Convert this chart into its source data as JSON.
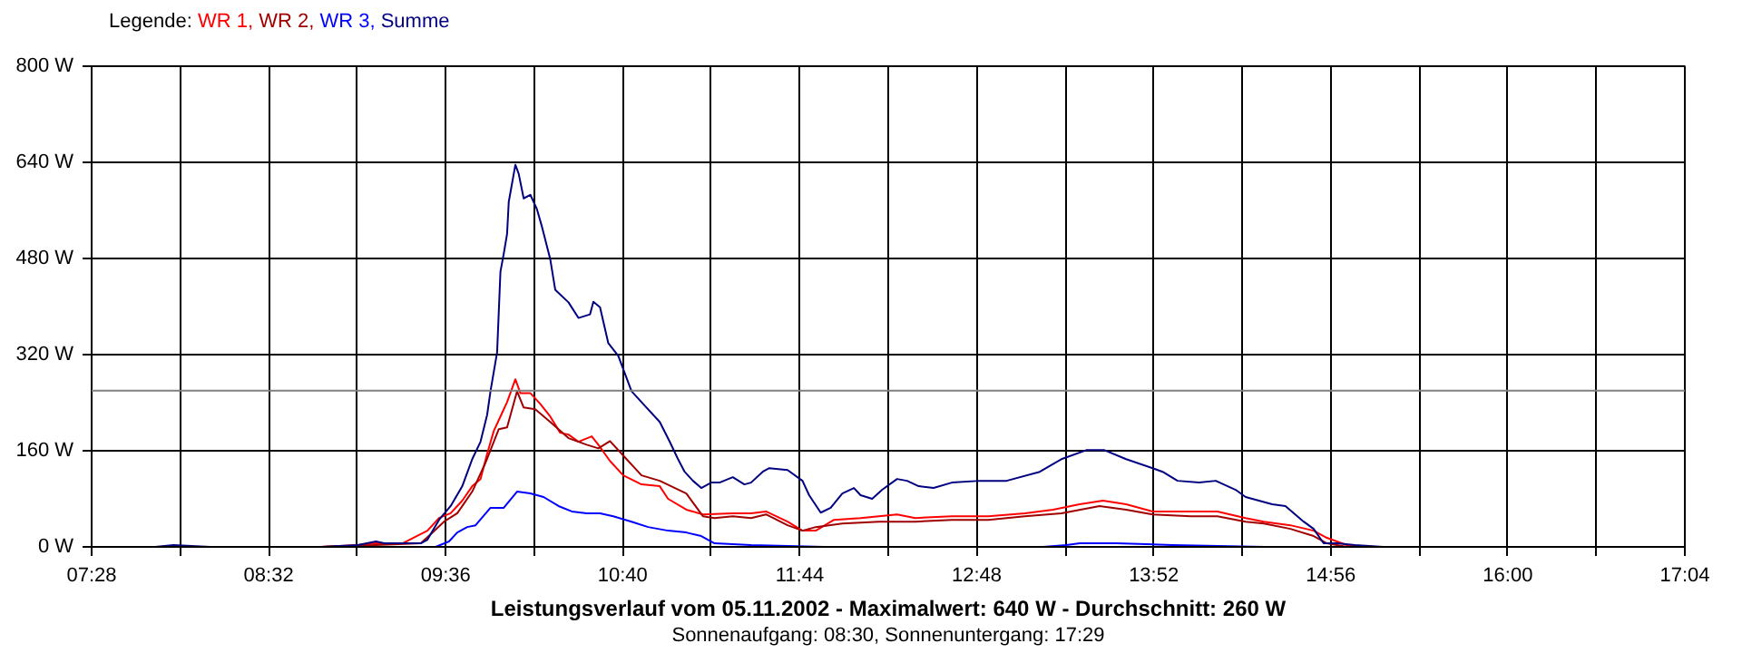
{
  "chart_data": {
    "type": "line",
    "title": "Leistungsverlauf vom 05.11.2002 - Maximalwert: 640 W - Durchschnitt: 260 W",
    "subtitle": "Sonnenaufgang: 08:30, Sonnenuntergang: 17:29",
    "legend_title": "Legende:",
    "legend": "top left",
    "grid": true,
    "line_style": "solid",
    "xlim": [
      7.4667,
      17.0667
    ],
    "xticks": [
      {
        "value": 7.4667,
        "label": "07:28"
      },
      {
        "value": 8.0,
        "label": null
      },
      {
        "value": 8.5333,
        "label": "08:32"
      },
      {
        "value": 9.0667,
        "label": null
      },
      {
        "value": 9.6,
        "label": "09:36"
      },
      {
        "value": 10.1333,
        "label": null
      },
      {
        "value": 10.6667,
        "label": "10:40"
      },
      {
        "value": 11.2,
        "label": null
      },
      {
        "value": 11.7333,
        "label": "11:44"
      },
      {
        "value": 12.2667,
        "label": null
      },
      {
        "value": 12.8,
        "label": "12:48"
      },
      {
        "value": 13.3333,
        "label": null
      },
      {
        "value": 13.8667,
        "label": "13:52"
      },
      {
        "value": 14.4,
        "label": null
      },
      {
        "value": 14.9333,
        "label": "14:56"
      },
      {
        "value": 15.4667,
        "label": null
      },
      {
        "value": 16.0,
        "label": "16:00"
      },
      {
        "value": 16.5333,
        "label": null
      },
      {
        "value": 17.0667,
        "label": "17:04"
      }
    ],
    "ylim": [
      0,
      800
    ],
    "yticks": [
      {
        "value": 0,
        "label": "0 W"
      },
      {
        "value": 160,
        "label": "160 W"
      },
      {
        "value": 320,
        "label": "320 W"
      },
      {
        "value": 480,
        "label": "480 W"
      },
      {
        "value": 640,
        "label": "640 W"
      },
      {
        "value": 800,
        "label": "800 W"
      }
    ],
    "ref_lines": [
      {
        "axis": "y",
        "value": 260,
        "color": "#808080"
      }
    ],
    "series": [
      {
        "name": "WR 1,",
        "color": "#ff0000",
        "x": [
          8.85,
          9.07,
          9.18,
          9.34,
          9.49,
          9.56,
          9.63,
          9.7,
          9.76,
          9.81,
          9.85,
          9.89,
          9.93,
          9.97,
          10.02,
          10.05,
          10.11,
          10.17,
          10.23,
          10.29,
          10.34,
          10.4,
          10.48,
          10.52,
          10.59,
          10.67,
          10.78,
          10.89,
          10.94,
          11.05,
          11.15,
          11.33,
          11.44,
          11.53,
          11.66,
          11.75,
          11.83,
          11.94,
          12.1,
          12.32,
          12.43,
          12.65,
          12.87,
          13.09,
          13.26,
          13.42,
          13.56,
          13.7,
          13.86,
          14.09,
          14.25,
          14.42,
          14.53,
          14.69,
          14.83,
          14.91,
          15.03,
          15.19
        ],
        "values": [
          0,
          3,
          6,
          6,
          27,
          48,
          56,
          77,
          101,
          113,
          155,
          193,
          217,
          241,
          279,
          256,
          256,
          238,
          217,
          190,
          187,
          175,
          184,
          170,
          143,
          119,
          104,
          101,
          80,
          62,
          54,
          56,
          56,
          59,
          42,
          27,
          27,
          45,
          48,
          54,
          48,
          51,
          51,
          56,
          62,
          71,
          77,
          71,
          59,
          59,
          59,
          48,
          42,
          36,
          27,
          15,
          3,
          0
        ]
      },
      {
        "name": "WR 2,",
        "color": "#a00000",
        "x": [
          8.85,
          9.18,
          9.45,
          9.51,
          9.59,
          9.67,
          9.76,
          9.84,
          9.92,
          9.97,
          10.03,
          10.07,
          10.14,
          10.23,
          10.34,
          10.45,
          10.52,
          10.59,
          10.67,
          10.78,
          10.89,
          11.05,
          11.15,
          11.22,
          11.33,
          11.44,
          11.53,
          11.66,
          11.75,
          11.83,
          11.99,
          12.21,
          12.43,
          12.65,
          12.87,
          13.09,
          13.31,
          13.54,
          13.7,
          13.86,
          14.09,
          14.25,
          14.42,
          14.53,
          14.69,
          14.83,
          14.91,
          15.03,
          15.19
        ],
        "values": [
          0,
          3,
          6,
          21,
          42,
          56,
          92,
          140,
          196,
          199,
          259,
          232,
          229,
          208,
          181,
          170,
          164,
          176,
          152,
          119,
          110,
          89,
          51,
          48,
          51,
          48,
          54,
          36,
          27,
          33,
          39,
          42,
          42,
          45,
          45,
          51,
          56,
          68,
          62,
          54,
          51,
          51,
          42,
          39,
          30,
          18,
          6,
          0,
          0
        ]
      },
      {
        "name": "WR 3,",
        "color": "#0000ff",
        "x": [
          9.54,
          9.62,
          9.67,
          9.73,
          9.78,
          9.87,
          9.95,
          10.03,
          10.11,
          10.19,
          10.28,
          10.36,
          10.45,
          10.53,
          10.61,
          10.72,
          10.82,
          10.94,
          11.05,
          11.14,
          11.22,
          11.44,
          11.88,
          13.2,
          13.34,
          13.42,
          13.64,
          13.98,
          14.53
        ],
        "values": [
          0,
          9,
          24,
          33,
          36,
          65,
          65,
          92,
          89,
          83,
          68,
          59,
          56,
          56,
          51,
          42,
          33,
          27,
          24,
          18,
          6,
          3,
          0,
          0,
          3,
          6,
          6,
          3,
          0
        ]
      },
      {
        "name": "Summe",
        "color": "#000080",
        "x": [
          7.85,
          7.96,
          8.18,
          8.35,
          8.85,
          9.07,
          9.18,
          9.23,
          9.45,
          9.49,
          9.56,
          9.63,
          9.7,
          9.76,
          9.81,
          9.85,
          9.87,
          9.91,
          9.93,
          9.95,
          9.97,
          9.98,
          10.02,
          10.04,
          10.07,
          10.11,
          10.15,
          10.18,
          10.23,
          10.26,
          10.34,
          10.4,
          10.47,
          10.49,
          10.53,
          10.58,
          10.64,
          10.72,
          10.8,
          10.89,
          10.95,
          11.0,
          11.04,
          11.09,
          11.14,
          11.2,
          11.25,
          11.33,
          11.4,
          11.44,
          11.51,
          11.55,
          11.66,
          11.75,
          11.79,
          11.86,
          11.92,
          11.99,
          12.06,
          12.1,
          12.17,
          12.23,
          12.32,
          12.38,
          12.45,
          12.54,
          12.65,
          12.82,
          12.98,
          13.18,
          13.31,
          13.46,
          13.57,
          13.7,
          13.86,
          13.92,
          14.01,
          14.14,
          14.24,
          14.36,
          14.42,
          14.5,
          14.58,
          14.66,
          14.77,
          14.83,
          14.89,
          14.97,
          15.08,
          15.25
        ],
        "values": [
          0,
          3,
          0,
          0,
          0,
          3,
          9,
          6,
          6,
          12,
          45,
          68,
          101,
          146,
          175,
          220,
          259,
          324,
          458,
          488,
          521,
          574,
          636,
          621,
          580,
          586,
          562,
          533,
          479,
          428,
          407,
          381,
          387,
          408,
          399,
          339,
          318,
          259,
          235,
          208,
          175,
          146,
          125,
          110,
          98,
          107,
          107,
          116,
          104,
          107,
          125,
          131,
          128,
          110,
          86,
          57,
          65,
          89,
          98,
          86,
          80,
          95,
          113,
          110,
          101,
          98,
          107,
          110,
          110,
          125,
          146,
          161,
          161,
          146,
          131,
          125,
          110,
          107,
          110,
          95,
          83,
          77,
          71,
          68,
          42,
          30,
          6,
          6,
          3,
          0
        ]
      }
    ]
  }
}
